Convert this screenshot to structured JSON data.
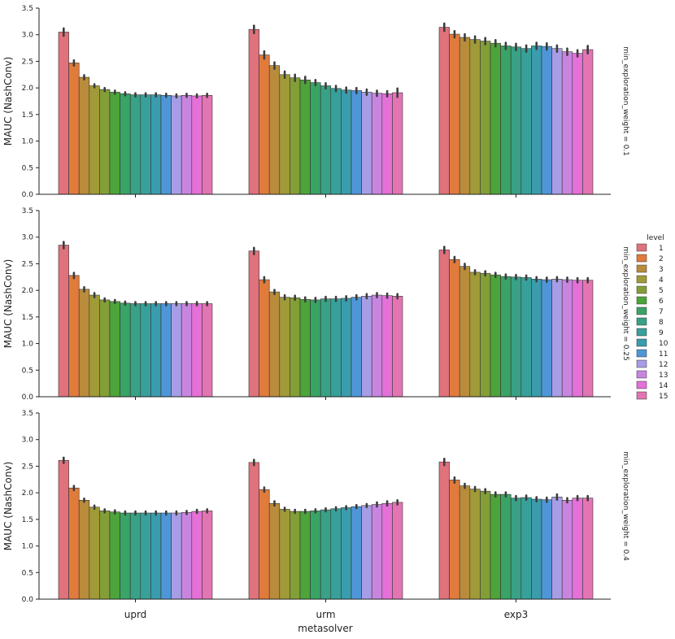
{
  "chart_data": {
    "type": "bar",
    "xlabel": "metasolver",
    "ylabel": "MAUC (NashConv)",
    "categories": [
      "uprd",
      "urm",
      "exp3"
    ],
    "ylim": [
      0,
      3.5
    ],
    "yticks": [
      "0.0",
      "0.5",
      "1.0",
      "1.5",
      "2.0",
      "2.5",
      "3.0",
      "3.5"
    ],
    "legend": {
      "title": "level",
      "position": "right",
      "labels": [
        "1",
        "2",
        "3",
        "4",
        "5",
        "6",
        "7",
        "8",
        "9",
        "10",
        "11",
        "12",
        "13",
        "14",
        "15"
      ]
    },
    "colors": [
      "#e0727c",
      "#e07b3c",
      "#b98c3c",
      "#a09a38",
      "#849e37",
      "#4da43a",
      "#3aa366",
      "#38a186",
      "#38a09a",
      "#3a9cad",
      "#4f96d8",
      "#a79de6",
      "#c885e0",
      "#e570d8",
      "#e375b3"
    ],
    "panels": [
      {
        "facet_label": "min_exploration_weight = 0.1",
        "groups": [
          {
            "name": "uprd",
            "values": [
              3.05,
              2.47,
              2.2,
              2.04,
              1.97,
              1.92,
              1.89,
              1.87,
              1.87,
              1.87,
              1.86,
              1.85,
              1.86,
              1.85,
              1.86
            ],
            "errors": [
              0.07,
              0.05,
              0.04,
              0.03,
              0.03,
              0.03,
              0.03,
              0.03,
              0.03,
              0.03,
              0.03,
              0.03,
              0.03,
              0.03,
              0.03
            ]
          },
          {
            "name": "urm",
            "values": [
              3.1,
              2.62,
              2.42,
              2.25,
              2.19,
              2.15,
              2.1,
              2.04,
              1.99,
              1.96,
              1.95,
              1.92,
              1.9,
              1.89,
              1.91
            ],
            "errors": [
              0.07,
              0.07,
              0.06,
              0.06,
              0.06,
              0.06,
              0.05,
              0.05,
              0.05,
              0.05,
              0.05,
              0.05,
              0.05,
              0.05,
              0.08
            ]
          },
          {
            "name": "exp3",
            "values": [
              3.14,
              3.01,
              2.95,
              2.91,
              2.88,
              2.84,
              2.79,
              2.77,
              2.74,
              2.79,
              2.78,
              2.74,
              2.68,
              2.65,
              2.72
            ],
            "errors": [
              0.07,
              0.06,
              0.06,
              0.06,
              0.06,
              0.06,
              0.06,
              0.06,
              0.06,
              0.06,
              0.06,
              0.06,
              0.06,
              0.06,
              0.07
            ]
          }
        ]
      },
      {
        "facet_label": "min_exploration_weight = 0.25",
        "groups": [
          {
            "name": "uprd",
            "values": [
              2.85,
              2.28,
              2.02,
              1.91,
              1.82,
              1.79,
              1.76,
              1.75,
              1.75,
              1.75,
              1.75,
              1.75,
              1.75,
              1.75,
              1.75
            ],
            "errors": [
              0.06,
              0.05,
              0.04,
              0.04,
              0.03,
              0.03,
              0.03,
              0.03,
              0.03,
              0.03,
              0.03,
              0.03,
              0.03,
              0.03,
              0.03
            ]
          },
          {
            "name": "urm",
            "values": [
              2.74,
              2.2,
              1.97,
              1.87,
              1.86,
              1.83,
              1.82,
              1.84,
              1.84,
              1.85,
              1.87,
              1.89,
              1.91,
              1.9,
              1.89
            ],
            "errors": [
              0.06,
              0.05,
              0.04,
              0.04,
              0.04,
              0.04,
              0.04,
              0.04,
              0.04,
              0.04,
              0.04,
              0.04,
              0.04,
              0.04,
              0.04
            ]
          },
          {
            "name": "exp3",
            "values": [
              2.76,
              2.58,
              2.45,
              2.34,
              2.32,
              2.29,
              2.26,
              2.25,
              2.24,
              2.21,
              2.2,
              2.21,
              2.2,
              2.19,
              2.19
            ],
            "errors": [
              0.06,
              0.05,
              0.05,
              0.04,
              0.04,
              0.04,
              0.04,
              0.04,
              0.04,
              0.04,
              0.04,
              0.04,
              0.04,
              0.04,
              0.04
            ]
          }
        ]
      },
      {
        "facet_label": "min_exploration_weight = 0.4",
        "groups": [
          {
            "name": "uprd",
            "values": [
              2.61,
              2.09,
              1.86,
              1.73,
              1.66,
              1.64,
              1.62,
              1.62,
              1.62,
              1.62,
              1.62,
              1.62,
              1.63,
              1.65,
              1.66
            ],
            "errors": [
              0.05,
              0.04,
              0.03,
              0.03,
              0.03,
              0.03,
              0.03,
              0.03,
              0.03,
              0.03,
              0.03,
              0.03,
              0.03,
              0.03,
              0.03
            ]
          },
          {
            "name": "urm",
            "values": [
              2.57,
              2.06,
              1.8,
              1.69,
              1.65,
              1.65,
              1.66,
              1.68,
              1.7,
              1.72,
              1.74,
              1.76,
              1.78,
              1.8,
              1.82
            ],
            "errors": [
              0.05,
              0.04,
              0.04,
              0.03,
              0.03,
              0.03,
              0.03,
              0.03,
              0.03,
              0.03,
              0.03,
              0.03,
              0.04,
              0.04,
              0.04
            ]
          },
          {
            "name": "exp3",
            "values": [
              2.58,
              2.24,
              2.13,
              2.07,
              2.03,
              1.97,
              1.97,
              1.9,
              1.91,
              1.88,
              1.87,
              1.92,
              1.86,
              1.9,
              1.9
            ],
            "errors": [
              0.06,
              0.05,
              0.04,
              0.04,
              0.04,
              0.04,
              0.04,
              0.04,
              0.04,
              0.04,
              0.04,
              0.05,
              0.04,
              0.04,
              0.04
            ]
          }
        ]
      }
    ]
  }
}
